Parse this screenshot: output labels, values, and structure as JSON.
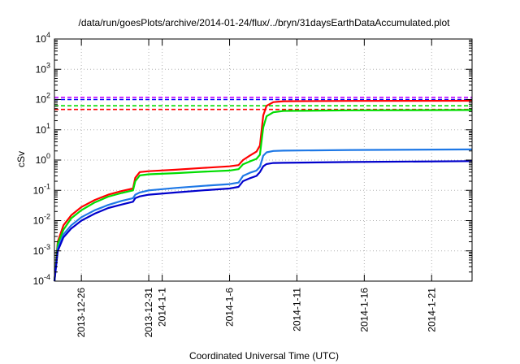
{
  "chart_data": {
    "type": "line",
    "title": "/data/run/goesPlots/archive/2014-01-24/flux/../bryn/31daysEarthDataAccumulated.plot",
    "xlabel": "Coordinated Universal Time (UTC)",
    "ylabel": "cSv",
    "y_scale": "log",
    "ylim": [
      0.0001,
      10000
    ],
    "xlim": [
      "2013-12-24",
      "2014-01-24"
    ],
    "x_ticks": [
      "2013-12-26",
      "2013-12-31",
      "2014-1-1",
      "2014-1-6",
      "2014-1-11",
      "2014-1-16",
      "2014-1-21"
    ],
    "x_tick_dates": [
      "2013-12-26",
      "2013-12-31",
      "2014-01-01",
      "2014-01-06",
      "2014-01-11",
      "2014-01-16",
      "2014-01-21"
    ],
    "y_ticks": [
      {
        "base": "10",
        "exp": "-4"
      },
      {
        "base": "10",
        "exp": "-3"
      },
      {
        "base": "10",
        "exp": "-2"
      },
      {
        "base": "10",
        "exp": "-1"
      },
      {
        "base": "10",
        "exp": "0"
      },
      {
        "base": "10",
        "exp": "1"
      },
      {
        "base": "10",
        "exp": "2"
      },
      {
        "base": "10",
        "exp": "3"
      },
      {
        "base": "10",
        "exp": "4"
      }
    ],
    "grid": true,
    "threshold_lines": [
      {
        "value": 118,
        "color": "#c000ff",
        "style": "dashed"
      },
      {
        "value": 100,
        "color": "#0000ff",
        "style": "dashed"
      },
      {
        "value": 62,
        "color": "#00dd00",
        "style": "dashed"
      },
      {
        "value": 47,
        "color": "#ff0000",
        "style": "dashed"
      }
    ],
    "series": [
      {
        "color": "#ff0000",
        "points": [
          [
            "2013-12-24T00:00",
            0.0001
          ],
          [
            "2013-12-24T06:00",
            0.002
          ],
          [
            "2013-12-24T16:00",
            0.007
          ],
          [
            "2013-12-25T06:00",
            0.015
          ],
          [
            "2013-12-26T00:00",
            0.028
          ],
          [
            "2013-12-27T00:00",
            0.048
          ],
          [
            "2013-12-28T00:00",
            0.072
          ],
          [
            "2013-12-29T00:00",
            0.095
          ],
          [
            "2013-12-29T20:00",
            0.115
          ],
          [
            "2013-12-30T00:00",
            0.26
          ],
          [
            "2013-12-30T08:00",
            0.4
          ],
          [
            "2013-12-31T00:00",
            0.43
          ],
          [
            "2014-01-02T00:00",
            0.48
          ],
          [
            "2014-01-04T00:00",
            0.55
          ],
          [
            "2014-01-06T00:00",
            0.62
          ],
          [
            "2014-01-06T16:00",
            0.68
          ],
          [
            "2014-01-07T00:00",
            1.0
          ],
          [
            "2014-01-07T12:00",
            1.4
          ],
          [
            "2014-01-08T00:00",
            1.9
          ],
          [
            "2014-01-08T06:00",
            3.0
          ],
          [
            "2014-01-08T12:00",
            30
          ],
          [
            "2014-01-08T18:00",
            62
          ],
          [
            "2014-01-09T06:00",
            82
          ],
          [
            "2014-01-10T00:00",
            88
          ],
          [
            "2014-01-15T00:00",
            90
          ],
          [
            "2014-01-24T00:00",
            91
          ]
        ]
      },
      {
        "color": "#00dd00",
        "points": [
          [
            "2013-12-24T00:00",
            0.0001
          ],
          [
            "2013-12-24T06:00",
            0.0017
          ],
          [
            "2013-12-24T16:00",
            0.005
          ],
          [
            "2013-12-25T06:00",
            0.012
          ],
          [
            "2013-12-26T00:00",
            0.022
          ],
          [
            "2013-12-27T00:00",
            0.04
          ],
          [
            "2013-12-28T00:00",
            0.062
          ],
          [
            "2013-12-29T00:00",
            0.082
          ],
          [
            "2013-12-29T20:00",
            0.1
          ],
          [
            "2013-12-30T00:00",
            0.2
          ],
          [
            "2013-12-30T08:00",
            0.31
          ],
          [
            "2013-12-31T00:00",
            0.34
          ],
          [
            "2014-01-02T00:00",
            0.37
          ],
          [
            "2014-01-04T00:00",
            0.41
          ],
          [
            "2014-01-06T00:00",
            0.45
          ],
          [
            "2014-01-06T16:00",
            0.5
          ],
          [
            "2014-01-07T00:00",
            0.72
          ],
          [
            "2014-01-07T12:00",
            0.9
          ],
          [
            "2014-01-08T00:00",
            1.1
          ],
          [
            "2014-01-08T06:00",
            1.5
          ],
          [
            "2014-01-08T12:00",
            12
          ],
          [
            "2014-01-08T18:00",
            28
          ],
          [
            "2014-01-09T06:00",
            38
          ],
          [
            "2014-01-10T00:00",
            42
          ],
          [
            "2014-01-15T00:00",
            44
          ],
          [
            "2014-01-24T00:00",
            45
          ]
        ]
      },
      {
        "color": "#1e78e6",
        "points": [
          [
            "2013-12-24T00:00",
            0.0001
          ],
          [
            "2013-12-24T06:00",
            0.0012
          ],
          [
            "2013-12-24T16:00",
            0.0035
          ],
          [
            "2013-12-25T06:00",
            0.007
          ],
          [
            "2013-12-26T00:00",
            0.013
          ],
          [
            "2013-12-27T00:00",
            0.022
          ],
          [
            "2013-12-28T00:00",
            0.033
          ],
          [
            "2013-12-29T00:00",
            0.045
          ],
          [
            "2013-12-29T20:00",
            0.055
          ],
          [
            "2013-12-30T00:00",
            0.072
          ],
          [
            "2013-12-30T08:00",
            0.085
          ],
          [
            "2013-12-31T00:00",
            0.1
          ],
          [
            "2014-01-02T00:00",
            0.12
          ],
          [
            "2014-01-04T00:00",
            0.14
          ],
          [
            "2014-01-06T00:00",
            0.16
          ],
          [
            "2014-01-06T16:00",
            0.18
          ],
          [
            "2014-01-07T00:00",
            0.3
          ],
          [
            "2014-01-07T12:00",
            0.38
          ],
          [
            "2014-01-08T00:00",
            0.45
          ],
          [
            "2014-01-08T06:00",
            0.6
          ],
          [
            "2014-01-08T12:00",
            1.4
          ],
          [
            "2014-01-08T18:00",
            1.8
          ],
          [
            "2014-01-09T06:00",
            2.0
          ],
          [
            "2014-01-10T00:00",
            2.05
          ],
          [
            "2014-01-15T00:00",
            2.15
          ],
          [
            "2014-01-24T00:00",
            2.25
          ]
        ]
      },
      {
        "color": "#0000cc",
        "points": [
          [
            "2013-12-24T00:00",
            0.0001
          ],
          [
            "2013-12-24T06:00",
            0.001
          ],
          [
            "2013-12-24T16:00",
            0.0028
          ],
          [
            "2013-12-25T06:00",
            0.0055
          ],
          [
            "2013-12-26T00:00",
            0.01
          ],
          [
            "2013-12-27T00:00",
            0.017
          ],
          [
            "2013-12-28T00:00",
            0.026
          ],
          [
            "2013-12-29T00:00",
            0.034
          ],
          [
            "2013-12-29T20:00",
            0.042
          ],
          [
            "2013-12-30T00:00",
            0.055
          ],
          [
            "2013-12-30T08:00",
            0.063
          ],
          [
            "2013-12-31T00:00",
            0.072
          ],
          [
            "2014-01-02T00:00",
            0.085
          ],
          [
            "2014-01-04T00:00",
            0.1
          ],
          [
            "2014-01-06T00:00",
            0.115
          ],
          [
            "2014-01-06T16:00",
            0.13
          ],
          [
            "2014-01-07T00:00",
            0.2
          ],
          [
            "2014-01-07T12:00",
            0.25
          ],
          [
            "2014-01-08T00:00",
            0.3
          ],
          [
            "2014-01-08T06:00",
            0.4
          ],
          [
            "2014-01-08T12:00",
            0.62
          ],
          [
            "2014-01-08T18:00",
            0.74
          ],
          [
            "2014-01-09T06:00",
            0.8
          ],
          [
            "2014-01-10T00:00",
            0.81
          ],
          [
            "2014-01-15T00:00",
            0.86
          ],
          [
            "2014-01-24T00:00",
            0.92
          ]
        ]
      }
    ]
  }
}
